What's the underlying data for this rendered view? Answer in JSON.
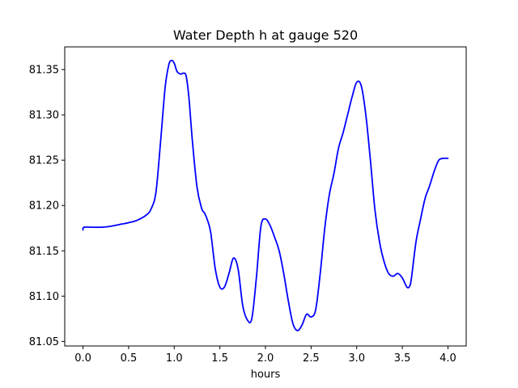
{
  "chart_data": {
    "type": "line",
    "title": "Water Depth h at gauge 520",
    "xlabel": "hours",
    "ylabel": "",
    "xlim": [
      -0.2,
      4.2
    ],
    "ylim": [
      81.045,
      81.375
    ],
    "xticks": [
      0.0,
      0.5,
      1.0,
      1.5,
      2.0,
      2.5,
      3.0,
      3.5,
      4.0
    ],
    "xtick_labels": [
      "0.0",
      "0.5",
      "1.0",
      "1.5",
      "2.0",
      "2.5",
      "3.0",
      "3.5",
      "4.0"
    ],
    "yticks": [
      81.05,
      81.1,
      81.15,
      81.2,
      81.25,
      81.3,
      81.35
    ],
    "ytick_labels": [
      "81.05",
      "81.10",
      "81.15",
      "81.20",
      "81.25",
      "81.30",
      "81.35"
    ],
    "grid": false,
    "series": [
      {
        "color": "#0000ff",
        "x": [
          0.0,
          0.01,
          0.1,
          0.2,
          0.3,
          0.4,
          0.5,
          0.6,
          0.7,
          0.75,
          0.8,
          0.85,
          0.9,
          0.94,
          0.97,
          1.0,
          1.03,
          1.07,
          1.1,
          1.13,
          1.16,
          1.2,
          1.25,
          1.3,
          1.33,
          1.36,
          1.4,
          1.45,
          1.5,
          1.55,
          1.6,
          1.65,
          1.7,
          1.75,
          1.8,
          1.85,
          1.9,
          1.95,
          2.0,
          2.05,
          2.1,
          2.15,
          2.2,
          2.25,
          2.3,
          2.35,
          2.4,
          2.45,
          2.5,
          2.55,
          2.6,
          2.65,
          2.7,
          2.75,
          2.8,
          2.85,
          2.9,
          2.95,
          3.0,
          3.05,
          3.1,
          3.15,
          3.2,
          3.25,
          3.3,
          3.35,
          3.4,
          3.45,
          3.5,
          3.55,
          3.58,
          3.6,
          3.65,
          3.7,
          3.75,
          3.8,
          3.85,
          3.9,
          3.95,
          4.0
        ],
        "y": [
          81.173,
          81.176,
          81.176,
          81.176,
          81.177,
          81.179,
          81.181,
          81.184,
          81.19,
          81.197,
          81.215,
          81.27,
          81.33,
          81.355,
          81.36,
          81.357,
          81.348,
          81.345,
          81.346,
          81.343,
          81.32,
          81.27,
          81.22,
          81.197,
          81.192,
          81.185,
          81.17,
          81.13,
          81.11,
          81.11,
          81.125,
          81.142,
          81.13,
          81.09,
          81.074,
          81.075,
          81.12,
          81.177,
          81.185,
          81.178,
          81.165,
          81.15,
          81.125,
          81.095,
          81.07,
          81.062,
          81.068,
          81.08,
          81.077,
          81.085,
          81.125,
          81.175,
          81.212,
          81.235,
          81.263,
          81.28,
          81.3,
          81.32,
          81.336,
          81.332,
          81.3,
          81.25,
          81.195,
          81.16,
          81.138,
          81.125,
          81.122,
          81.125,
          81.12,
          81.11,
          81.111,
          81.12,
          81.16,
          81.185,
          81.208,
          81.222,
          81.238,
          81.25,
          81.252,
          81.252
        ]
      }
    ]
  }
}
